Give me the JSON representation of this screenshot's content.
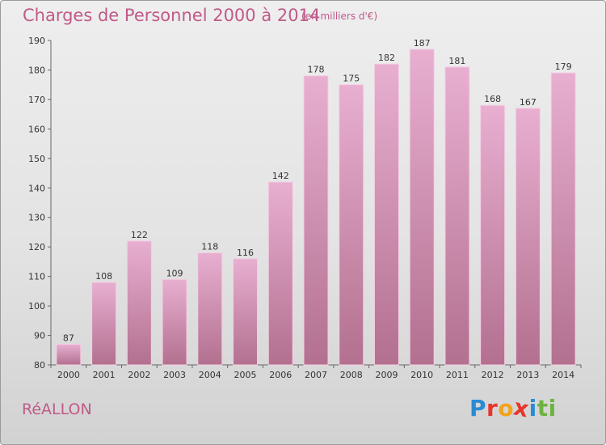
{
  "header": {
    "title": "Charges de Personnel 2000 à 2014",
    "subtitle": "(en milliers d'€)"
  },
  "footer": {
    "commune": "RéALLON",
    "logo": {
      "letters": [
        "P",
        "r",
        "o",
        "x",
        "i",
        "t",
        "i"
      ],
      "colors": [
        "#2a8bd4",
        "#e8342a",
        "#f3a21b",
        "#e8342a",
        "#2a8bd4",
        "#6cb33f",
        "#6cb33f"
      ]
    }
  },
  "colors": {
    "bar_top": "#e8afd1",
    "bar_bottom": "#b3708f",
    "bar_edge": "#f2cfe2",
    "title": "#c05a89"
  },
  "chart_data": {
    "type": "bar",
    "categories": [
      "2000",
      "2001",
      "2002",
      "2003",
      "2004",
      "2005",
      "2006",
      "2007",
      "2008",
      "2009",
      "2010",
      "2011",
      "2012",
      "2013",
      "2014"
    ],
    "values": [
      87,
      108,
      122,
      109,
      118,
      116,
      142,
      178,
      175,
      182,
      187,
      181,
      168,
      167,
      179
    ],
    "ylim": [
      80,
      190
    ],
    "yticks": [
      80,
      90,
      100,
      110,
      120,
      130,
      140,
      150,
      160,
      170,
      180,
      190
    ],
    "grid": false,
    "xlabel": "",
    "ylabel": ""
  }
}
